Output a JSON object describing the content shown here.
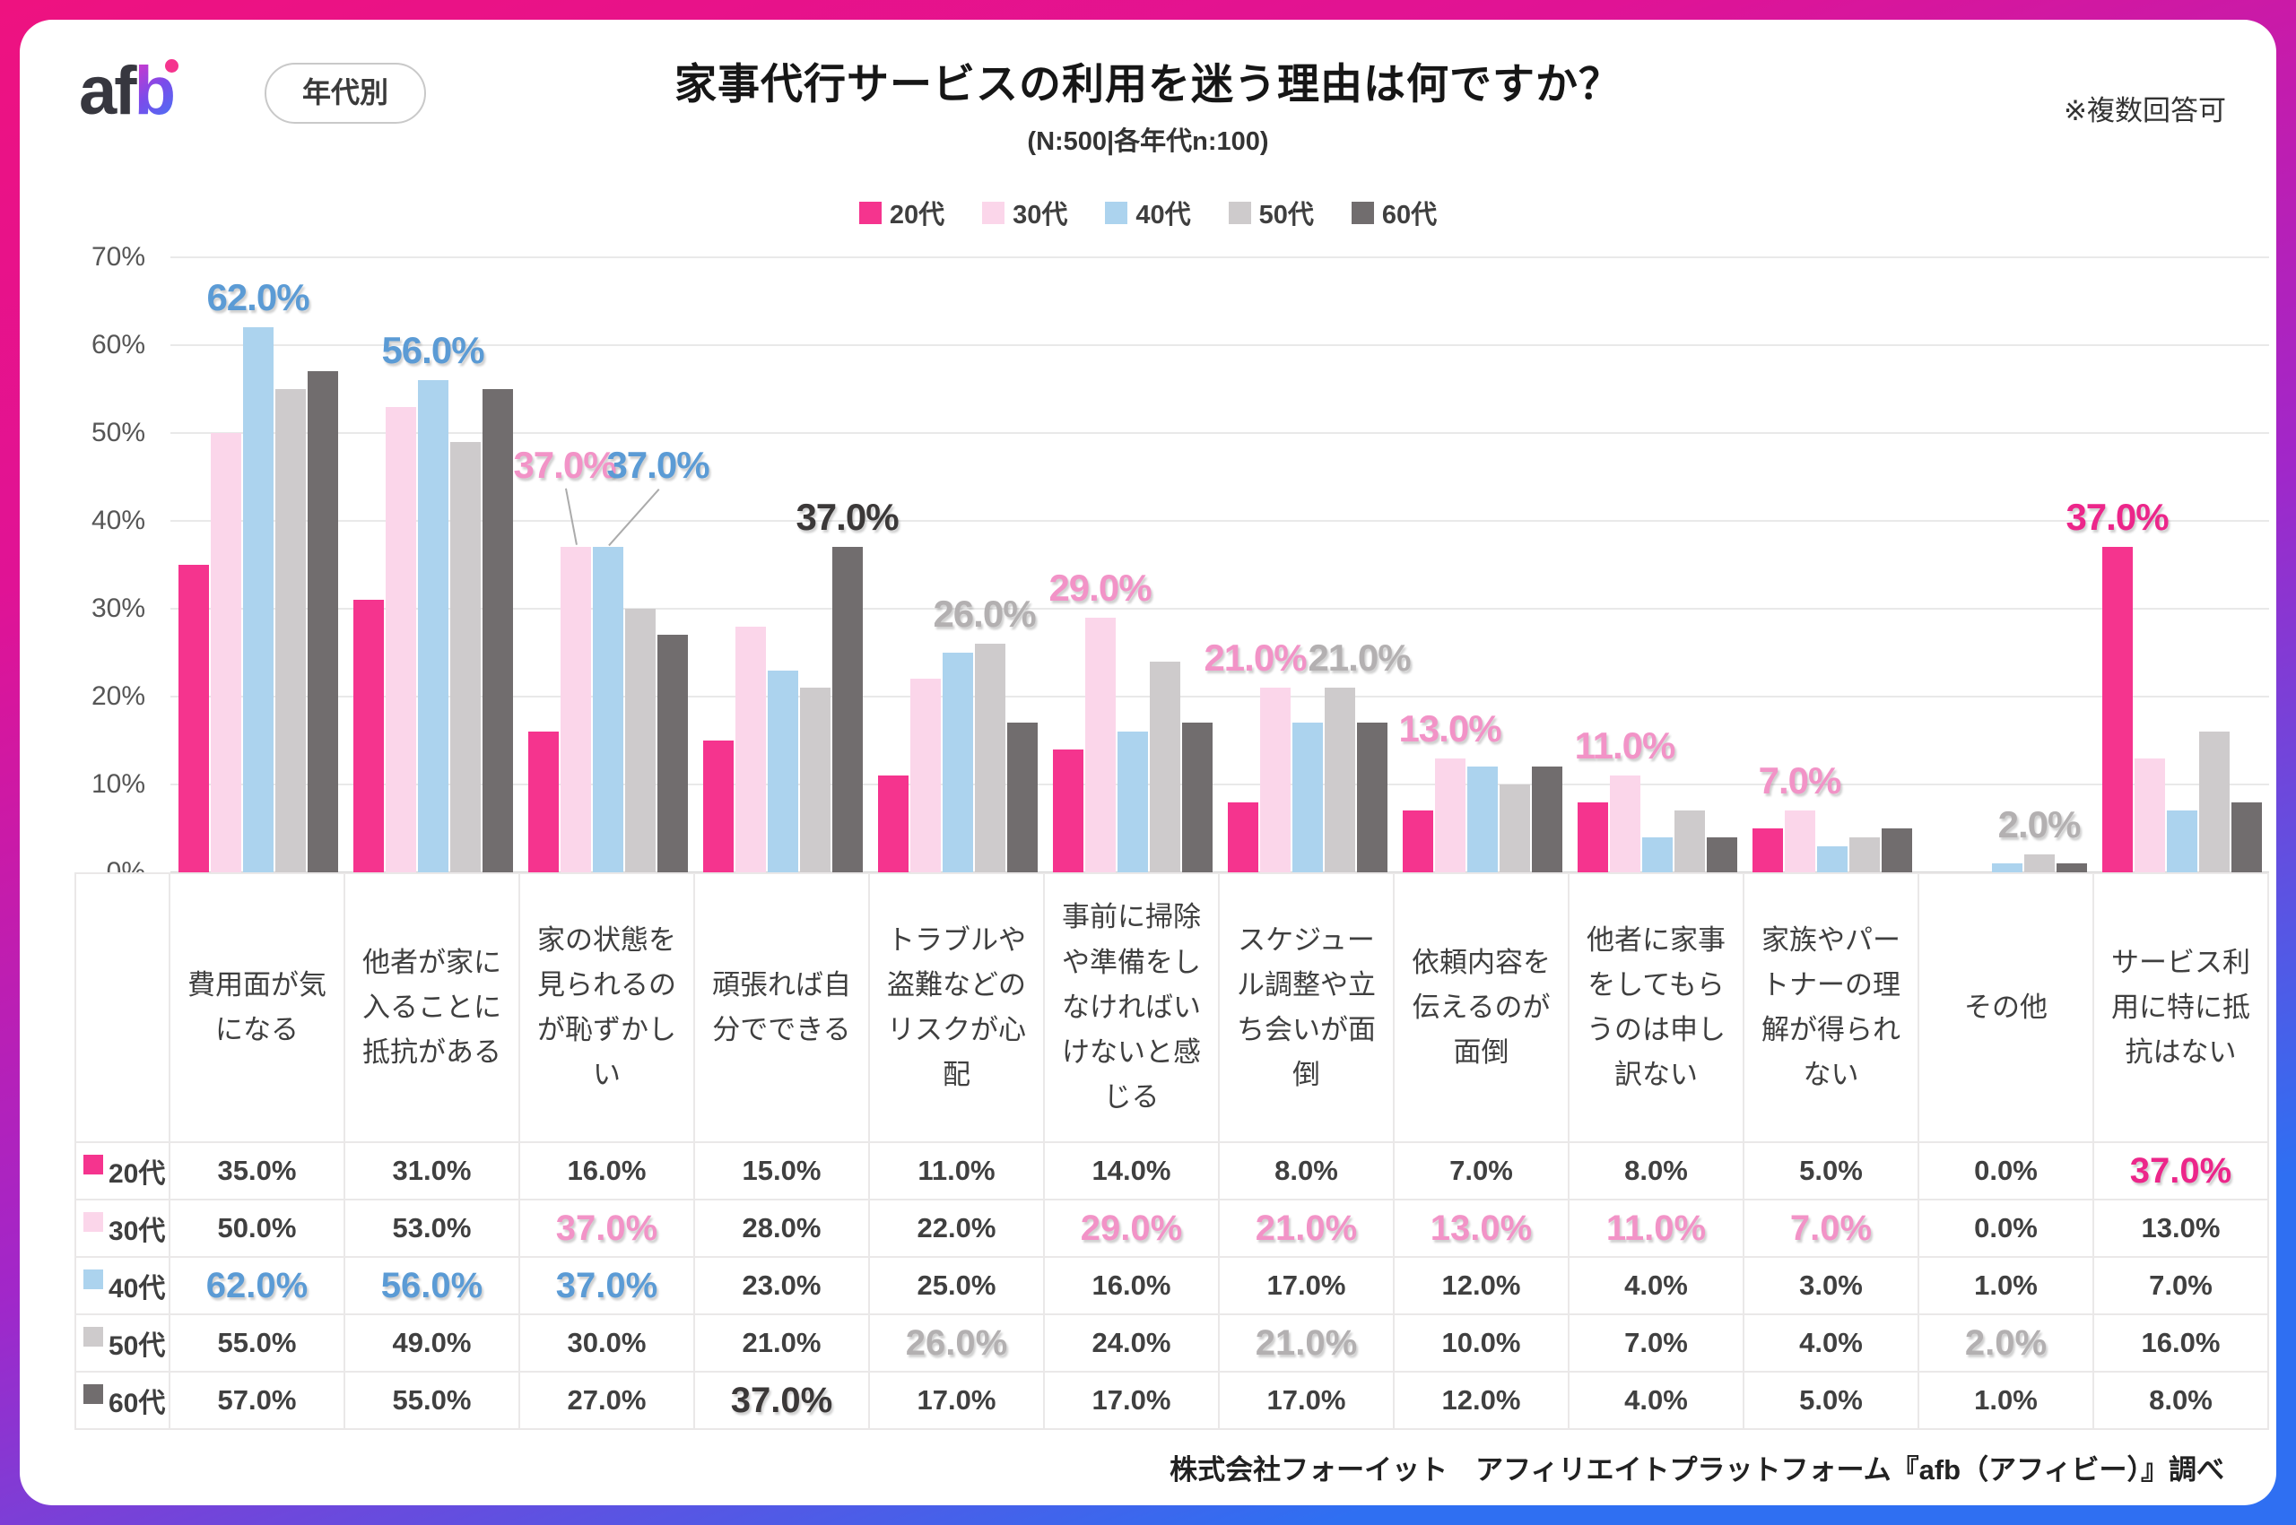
{
  "header": {
    "logo_af": "af",
    "logo_b": "b",
    "badge": "年代別",
    "title": "家事代行サービスの利用を迷う理由は何ですか？",
    "subtitle": "(N:500|各年代n:100)",
    "note": "※複数回答可"
  },
  "chart_data": {
    "type": "bar",
    "title": "家事代行サービスの利用を迷う理由は何ですか？",
    "subtitle": "(N:500|各年代n:100)",
    "categories": [
      "費用面が気になる",
      "他者が家に入ることに抵抗がある",
      "家の状態を見られるのが恥ずかしい",
      "頑張れば自分でできる",
      "トラブルや盗難などのリスクが心配",
      "事前に掃除や準備をしなければいけないと感じる",
      "スケジュール調整や立ち会いが面倒",
      "依頼内容を伝えるのが面倒",
      "他者に家事をしてもらうのは申し訳ない",
      "家族やパートナーの理解が得られない",
      "その他",
      "サービス利用に特に抵抗はない"
    ],
    "series": [
      {
        "name": "20代",
        "color": "#F5348E",
        "label_color": "#EC268A",
        "values": [
          35,
          31,
          16,
          15,
          11,
          14,
          8,
          7,
          8,
          5,
          0,
          37
        ]
      },
      {
        "name": "30代",
        "color": "#FBD6EA",
        "label_color": "#F293C7",
        "values": [
          50,
          53,
          37,
          28,
          22,
          29,
          21,
          13,
          11,
          7,
          0,
          13
        ]
      },
      {
        "name": "40代",
        "color": "#ACD3EE",
        "label_color": "#5B9BD5",
        "values": [
          62,
          56,
          37,
          23,
          25,
          16,
          17,
          12,
          4,
          3,
          1,
          7
        ]
      },
      {
        "name": "50代",
        "color": "#CECBCC",
        "label_color": "#B3B0B1",
        "values": [
          55,
          49,
          30,
          21,
          26,
          24,
          21,
          10,
          7,
          4,
          2,
          16
        ]
      },
      {
        "name": "60代",
        "color": "#716D6E",
        "label_color": "#3B3838",
        "values": [
          57,
          55,
          27,
          37,
          17,
          17,
          17,
          12,
          4,
          5,
          1,
          8
        ]
      }
    ],
    "ylim": [
      0,
      70
    ],
    "ytick_step": 10,
    "ytick_labels": [
      "0%",
      "10%",
      "20%",
      "30%",
      "40%",
      "50%",
      "60%",
      "70%"
    ],
    "grid": true,
    "legend_position": "top",
    "annotations": [
      {
        "cat": 0,
        "series": 2,
        "text": "62.0%"
      },
      {
        "cat": 1,
        "series": 2,
        "text": "56.0%"
      },
      {
        "cat": 2,
        "series": 1,
        "text": "37.0%"
      },
      {
        "cat": 2,
        "series": 2,
        "text": "37.0%"
      },
      {
        "cat": 3,
        "series": 4,
        "text": "37.0%"
      },
      {
        "cat": 4,
        "series": 3,
        "text": "26.0%"
      },
      {
        "cat": 5,
        "series": 1,
        "text": "29.0%"
      },
      {
        "cat": 6,
        "series": 1,
        "text": "21.0%"
      },
      {
        "cat": 6,
        "series": 3,
        "text": "21.0%"
      },
      {
        "cat": 7,
        "series": 1,
        "text": "13.0%"
      },
      {
        "cat": 8,
        "series": 1,
        "text": "11.0%"
      },
      {
        "cat": 9,
        "series": 1,
        "text": "7.0%"
      },
      {
        "cat": 10,
        "series": 3,
        "text": "2.0%"
      },
      {
        "cat": 11,
        "series": 0,
        "text": "37.0%"
      }
    ]
  },
  "footer": {
    "credit": "株式会社フォーイット　アフィリエイトプラットフォーム『afb（アフィビー）』調べ"
  }
}
